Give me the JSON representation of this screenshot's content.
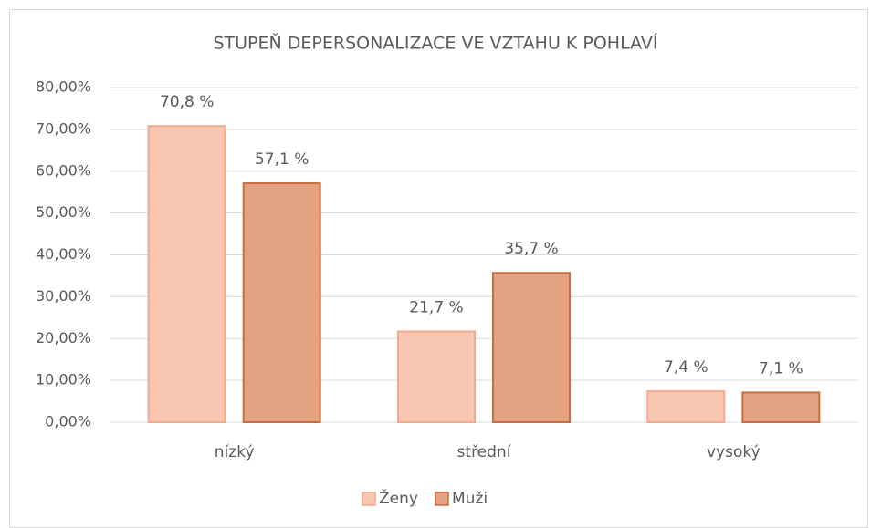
{
  "chart_data": {
    "type": "bar",
    "title": "STUPEŇ DEPERSONALIZACE VE VZTAHU K POHLAVÍ",
    "categories": [
      "nízký",
      "střední",
      "vysoký"
    ],
    "series": [
      {
        "name": "Ženy",
        "color": "#f8c6b1",
        "edgecolor": "#f2a98c",
        "values": [
          70.8,
          21.7,
          7.4
        ],
        "value_labels": [
          "70,8 %",
          "21,7 %",
          "7,4 %"
        ]
      },
      {
        "name": "Muži",
        "color": "#e3a383",
        "edgecolor": "#c96d3e",
        "values": [
          57.1,
          35.7,
          7.1
        ],
        "value_labels": [
          "57,1 %",
          "35,7 %",
          "7,1 %"
        ]
      }
    ],
    "ylim": [
      0,
      80
    ],
    "yticks": [
      {
        "value": 0,
        "label": "0,00%"
      },
      {
        "value": 10,
        "label": "10,00%"
      },
      {
        "value": 20,
        "label": "20,00%"
      },
      {
        "value": 30,
        "label": "30,00%"
      },
      {
        "value": 40,
        "label": "40,00%"
      },
      {
        "value": 50,
        "label": "50,00%"
      },
      {
        "value": 60,
        "label": "60,00%"
      },
      {
        "value": 70,
        "label": "70,00%"
      },
      {
        "value": 80,
        "label": "80,00%"
      }
    ],
    "grid": true,
    "legend": "bottom"
  }
}
